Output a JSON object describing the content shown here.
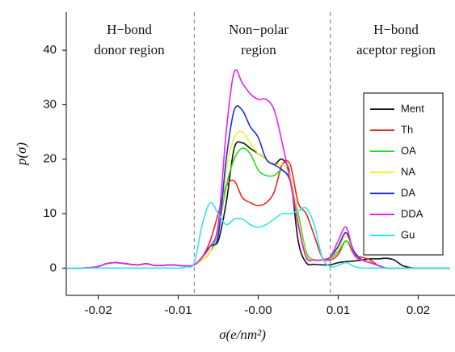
{
  "chart_data": {
    "type": "line",
    "xlabel": "σ(e/nm²)",
    "ylabel": "p(σ)",
    "annotations": [
      [
        "H−bond",
        "donor region"
      ],
      [
        "Non−polar",
        "region"
      ],
      [
        "H−bond",
        "aceptor region"
      ]
    ],
    "vlines": [
      -0.008,
      0.009
    ],
    "xlim": [
      -0.024,
      0.024
    ],
    "ylim": [
      -5,
      47
    ],
    "xticks": [
      -0.02,
      -0.01,
      {
        "value": 0,
        "label": "-0.00"
      },
      0.01,
      0.02
    ],
    "yticks": [
      0,
      10,
      20,
      30,
      40
    ],
    "legend": "right",
    "x": [
      -0.024,
      -0.023,
      -0.022,
      -0.021,
      -0.02,
      -0.019,
      -0.018,
      -0.017,
      -0.016,
      -0.015,
      -0.014,
      -0.013,
      -0.012,
      -0.011,
      -0.01,
      -0.009,
      -0.008,
      -0.007,
      -0.006,
      -0.005,
      -0.004,
      -0.003,
      -0.002,
      -0.001,
      0,
      0.001,
      0.002,
      0.003,
      0.004,
      0.005,
      0.006,
      0.007,
      0.008,
      0.009,
      0.01,
      0.011,
      0.012,
      0.013,
      0.014,
      0.015,
      0.016,
      0.017,
      0.018,
      0.019,
      0.02,
      0.021,
      0.022,
      0.023,
      0.024
    ],
    "series": [
      {
        "name": "Ment",
        "color": "#111111",
        "values": [
          0,
          0,
          0,
          0.1,
          0.3,
          0.8,
          1,
          0.9,
          0.7,
          0.6,
          0.8,
          0.5,
          0.5,
          0.6,
          0.5,
          0.4,
          0.6,
          2,
          4,
          5,
          12,
          22,
          23,
          22,
          21,
          20,
          19,
          20,
          17,
          5,
          1,
          0.7,
          0.6,
          0.6,
          1,
          1.2,
          1.3,
          1.5,
          1.7,
          1.7,
          1.8,
          1.5,
          0.5,
          0.1,
          0,
          0,
          0,
          0,
          0
        ]
      },
      {
        "name": "Th",
        "color": "#e8261c",
        "values": [
          0,
          0,
          0,
          0.1,
          0.3,
          0.8,
          1,
          0.9,
          0.7,
          0.6,
          0.8,
          0.5,
          0.5,
          0.6,
          0.5,
          0.4,
          0.6,
          2,
          5,
          10,
          15,
          16,
          13,
          12,
          11.5,
          12,
          14,
          19,
          19,
          12,
          10,
          6,
          2,
          1.5,
          2.5,
          5,
          2.5,
          2,
          1.5,
          0.5,
          0,
          0,
          0,
          0,
          0,
          0,
          0,
          0,
          0
        ]
      },
      {
        "name": "OA",
        "color": "#22dd22",
        "values": [
          0,
          0,
          0,
          0.1,
          0.3,
          0.8,
          1,
          0.9,
          0.7,
          0.6,
          0.8,
          0.5,
          0.5,
          0.6,
          0.5,
          0.4,
          0.6,
          1.5,
          3,
          7,
          15,
          20,
          22,
          21,
          18,
          17,
          17,
          18,
          16,
          10,
          3,
          1.5,
          1.5,
          1.8,
          3,
          5,
          3,
          1.5,
          1,
          0.5,
          0,
          0,
          0,
          0,
          0,
          0,
          0,
          0,
          0
        ]
      },
      {
        "name": "NA",
        "color": "#f2f21e",
        "values": [
          0,
          0,
          0,
          0.1,
          0.3,
          0.8,
          1,
          0.9,
          0.7,
          0.6,
          0.8,
          0.5,
          0.5,
          0.6,
          0.5,
          0.4,
          0.6,
          1.5,
          3,
          6,
          18,
          24,
          25,
          23,
          21,
          20,
          19,
          19,
          17,
          9,
          2.5,
          1.5,
          1.5,
          2,
          3.5,
          6,
          3,
          1.5,
          1,
          0.5,
          0,
          0,
          0,
          0,
          0,
          0,
          0,
          0,
          0
        ]
      },
      {
        "name": "DA",
        "color": "#1d2ee0",
        "values": [
          0,
          0,
          0,
          0.1,
          0.3,
          0.8,
          1,
          0.9,
          0.7,
          0.6,
          0.8,
          0.5,
          0.5,
          0.6,
          0.5,
          0.4,
          0.6,
          2,
          4,
          6,
          20,
          29,
          29,
          26,
          24,
          20,
          19,
          18,
          16,
          8,
          2,
          1.5,
          1.5,
          2,
          4,
          6.5,
          3,
          1.5,
          1,
          0.5,
          0,
          0,
          0,
          0,
          0,
          0,
          0,
          0,
          0
        ]
      },
      {
        "name": "DDA",
        "color": "#f01ff0",
        "values": [
          0,
          0,
          0,
          0.1,
          0.3,
          0.8,
          1,
          0.9,
          0.7,
          0.6,
          0.8,
          0.5,
          0.5,
          0.6,
          0.5,
          0.4,
          0.6,
          2,
          4,
          8,
          25,
          36,
          34,
          32,
          31,
          31,
          29,
          23,
          16,
          8,
          2,
          1.5,
          1.5,
          2,
          5,
          7.5,
          2.5,
          1.5,
          1,
          0.5,
          0,
          0,
          0,
          0,
          0,
          0,
          0,
          0,
          0
        ]
      },
      {
        "name": "Gu",
        "color": "#2ee6ee",
        "values": [
          0,
          0,
          0,
          0,
          0,
          0,
          0,
          0,
          0,
          0,
          0,
          0,
          0,
          0,
          0,
          0.2,
          1,
          8,
          12,
          10,
          8,
          9,
          9,
          8,
          7.5,
          8,
          9,
          10,
          10,
          10.5,
          11,
          8,
          2,
          0.3,
          0.5,
          1,
          0.3,
          0,
          0,
          0,
          0,
          0,
          0,
          0,
          0,
          0,
          0,
          0,
          0
        ]
      }
    ]
  }
}
